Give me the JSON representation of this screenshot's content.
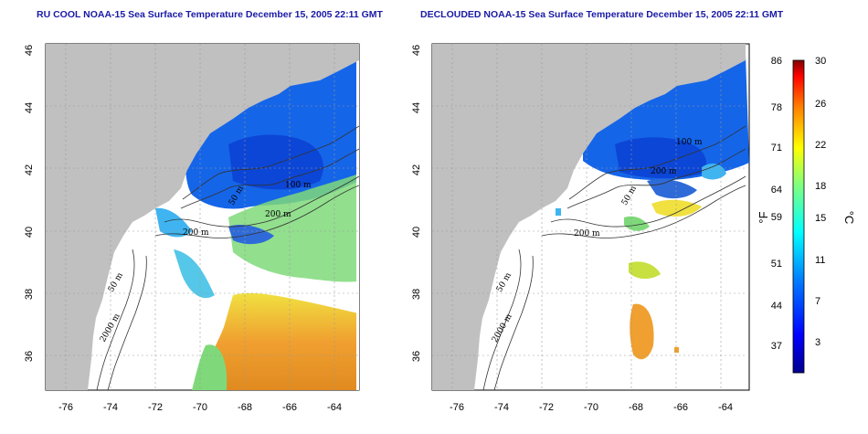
{
  "left_panel": {
    "title": "RU COOL NOAA-15 Sea Surface Temperature December 15, 2005 22:11 GMT",
    "contours": [
      "100 m",
      "200 m",
      "50 m",
      "200 m",
      "50 m",
      "2000 m"
    ]
  },
  "right_panel": {
    "title": "DECLOUDED NOAA-15 Sea Surface Temperature December 15, 2005 22:11 GMT",
    "contours": [
      "100 m",
      "200 m",
      "50 m",
      "200 m",
      "50 m",
      "2000 m"
    ]
  },
  "axes": {
    "lat_ticks": [
      "46",
      "44",
      "42",
      "40",
      "38",
      "36"
    ],
    "lon_ticks": [
      "-76",
      "-74",
      "-72",
      "-70",
      "-68",
      "-66",
      "-64"
    ]
  },
  "colorbar": {
    "unit_f": "°F",
    "unit_c": "°C",
    "f_ticks": [
      "86",
      "78",
      "71",
      "64",
      "59",
      "51",
      "44",
      "37"
    ],
    "c_ticks": [
      "30",
      "26",
      "22",
      "18",
      "15",
      "11",
      "7",
      "3"
    ]
  },
  "colors": {
    "land": "#c0c0c0",
    "title": "#1a1aa6"
  }
}
